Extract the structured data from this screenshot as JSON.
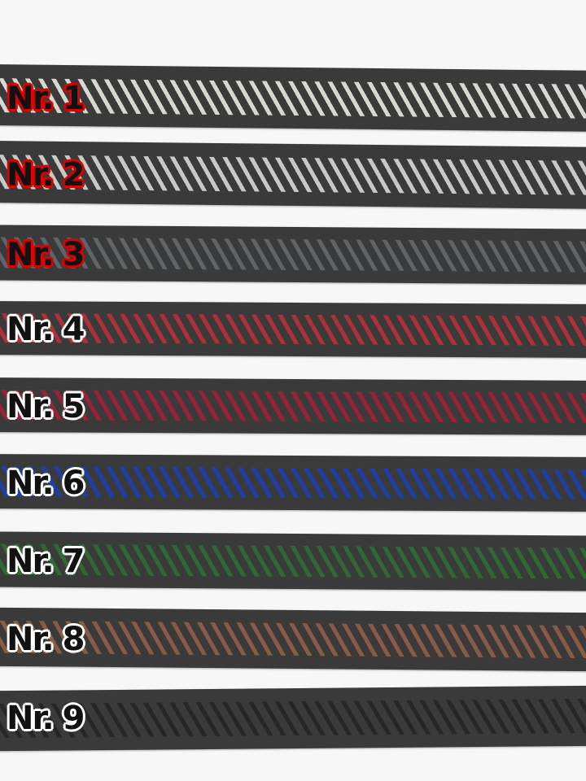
{
  "items": [
    {
      "label": "Nr. 1",
      "stripe_color": "#d8d8d0",
      "outline": "red"
    },
    {
      "label": "Nr. 2",
      "stripe_color": "#c8c8c4",
      "outline": "red"
    },
    {
      "label": "Nr. 3",
      "stripe_color": "#5e6468",
      "outline": "red"
    },
    {
      "label": "Nr. 4",
      "stripe_color": "#b0303a",
      "outline": "white"
    },
    {
      "label": "Nr. 5",
      "stripe_color": "#9a2238",
      "outline": "white"
    },
    {
      "label": "Nr. 6",
      "stripe_color": "#1f3fa8",
      "outline": "white"
    },
    {
      "label": "Nr. 7",
      "stripe_color": "#2f6a34",
      "outline": "white"
    },
    {
      "label": "Nr. 8",
      "stripe_color": "#8a5a42",
      "outline": "white"
    },
    {
      "label": "Nr. 9",
      "stripe_color": "#262626",
      "outline": "white"
    }
  ]
}
